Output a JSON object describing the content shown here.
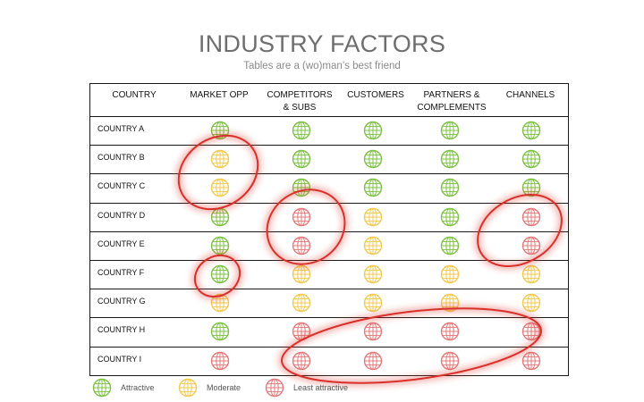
{
  "title": "INDUSTRY FACTORS",
  "subtitle": "Tables are a (wo)man’s best friend",
  "table": {
    "header_country": "COUNTRY",
    "columns": [
      {
        "line1": "MARKET OPP",
        "line2": ""
      },
      {
        "line1": "COMPETITORS",
        "line2": "& SUBS"
      },
      {
        "line1": "CUSTOMERS",
        "line2": ""
      },
      {
        "line1": "PARTNERS &",
        "line2": "COMPLEMENTS"
      },
      {
        "line1": "CHANNELS",
        "line2": ""
      }
    ],
    "rows": [
      {
        "country": "COUNTRY A",
        "ratings": [
          "attractive",
          "attractive",
          "attractive",
          "attractive",
          "attractive"
        ]
      },
      {
        "country": "COUNTRY B",
        "ratings": [
          "moderate",
          "attractive",
          "attractive",
          "attractive",
          "attractive"
        ]
      },
      {
        "country": "COUNTRY C",
        "ratings": [
          "moderate",
          "attractive",
          "attractive",
          "attractive",
          "attractive"
        ]
      },
      {
        "country": "COUNTRY D",
        "ratings": [
          "attractive",
          "least",
          "moderate",
          "attractive",
          "least"
        ]
      },
      {
        "country": "COUNTRY E",
        "ratings": [
          "attractive",
          "least",
          "moderate",
          "attractive",
          "least"
        ]
      },
      {
        "country": "COUNTRY F",
        "ratings": [
          "attractive",
          "moderate",
          "moderate",
          "moderate",
          "moderate"
        ]
      },
      {
        "country": "COUNTRY G",
        "ratings": [
          "moderate",
          "moderate",
          "moderate",
          "moderate",
          "moderate"
        ]
      },
      {
        "country": "COUNTRY H",
        "ratings": [
          "attractive",
          "least",
          "least",
          "least",
          "least"
        ]
      },
      {
        "country": "COUNTRY I",
        "ratings": [
          "least",
          "least",
          "least",
          "least",
          "least"
        ]
      }
    ]
  },
  "legend": [
    {
      "key": "attractive",
      "label": "Attractive"
    },
    {
      "key": "moderate",
      "label": "Moderate"
    },
    {
      "key": "least",
      "label": "Least attractive"
    }
  ],
  "colors": {
    "attractive": "#7dc242",
    "moderate": "#f2c94c",
    "least": "#e5787a",
    "highlight": "#d9302c"
  }
}
